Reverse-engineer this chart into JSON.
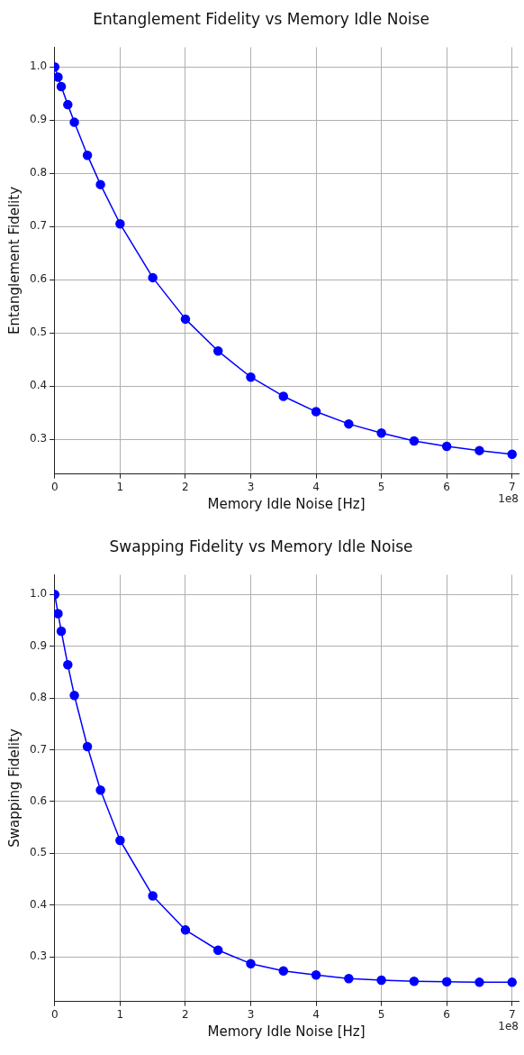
{
  "chart_data": [
    {
      "type": "line",
      "title": "Entanglement Fidelity vs Memory Idle Noise",
      "xlabel": "Memory Idle Noise [Hz]",
      "ylabel": "Entanglement Fidelity",
      "annotations": [
        "1e8"
      ],
      "x": [
        0,
        0.05,
        0.1,
        0.2,
        0.3,
        0.5,
        0.7,
        1,
        1.5,
        2,
        2.5,
        3,
        3.5,
        4,
        4.5,
        5,
        5.5,
        6,
        6.5,
        7
      ],
      "series": [
        {
          "color": "#0000ff",
          "values": [
            1.0,
            0.981,
            0.963,
            0.929,
            0.896,
            0.834,
            0.779,
            0.705,
            0.604,
            0.526,
            0.466,
            0.417,
            0.381,
            0.352,
            0.329,
            0.312,
            0.297,
            0.287,
            0.279,
            0.272
          ]
        }
      ],
      "xlim": [
        -0.01,
        7.1
      ],
      "xticks": [
        0,
        1,
        2,
        3,
        4,
        5,
        6,
        7
      ],
      "ylim": [
        0.235,
        1.037
      ],
      "yticks": [
        {
          "value": 0.3,
          "label": "0.3"
        },
        {
          "value": 0.4,
          "label": "0.4"
        },
        {
          "value": 0.5,
          "label": "0.5"
        },
        {
          "value": 0.6,
          "label": "0.6"
        },
        {
          "value": 0.7,
          "label": "0.7"
        },
        {
          "value": 0.8,
          "label": "0.8"
        },
        {
          "value": 0.9,
          "label": "0.9"
        },
        {
          "value": 1.0,
          "label": "1.0"
        }
      ],
      "grid": true,
      "marker": "circle",
      "line_style": "solid",
      "legend": false
    },
    {
      "type": "line",
      "title": "Swapping Fidelity vs Memory Idle Noise",
      "xlabel": "Memory Idle Noise [Hz]",
      "ylabel": "Swapping Fidelity",
      "annotations": [
        "1e8"
      ],
      "x": [
        0,
        0.05,
        0.1,
        0.2,
        0.3,
        0.5,
        0.7,
        1,
        1.5,
        2,
        2.5,
        3,
        3.5,
        4,
        4.5,
        5,
        5.5,
        6,
        6.5,
        7
      ],
      "series": [
        {
          "color": "#0000ff",
          "values": [
            1.0,
            0.963,
            0.929,
            0.864,
            0.805,
            0.706,
            0.622,
            0.525,
            0.418,
            0.352,
            0.313,
            0.287,
            0.273,
            0.265,
            0.258,
            0.255,
            0.253,
            0.252,
            0.251,
            0.251
          ]
        }
      ],
      "xlim": [
        -0.01,
        7.1
      ],
      "xticks": [
        0,
        1,
        2,
        3,
        4,
        5,
        6,
        7
      ],
      "ylim": [
        0.214,
        1.038
      ],
      "yticks": [
        {
          "value": 0.3,
          "label": "0.3"
        },
        {
          "value": 0.4,
          "label": "0.4"
        },
        {
          "value": 0.5,
          "label": "0.5"
        },
        {
          "value": 0.6,
          "label": "0.6"
        },
        {
          "value": 0.7,
          "label": "0.7"
        },
        {
          "value": 0.8,
          "label": "0.8"
        },
        {
          "value": 0.9,
          "label": "0.9"
        },
        {
          "value": 1.0,
          "label": "1.0"
        }
      ],
      "grid": true,
      "marker": "circle",
      "line_style": "solid",
      "legend": false
    }
  ]
}
